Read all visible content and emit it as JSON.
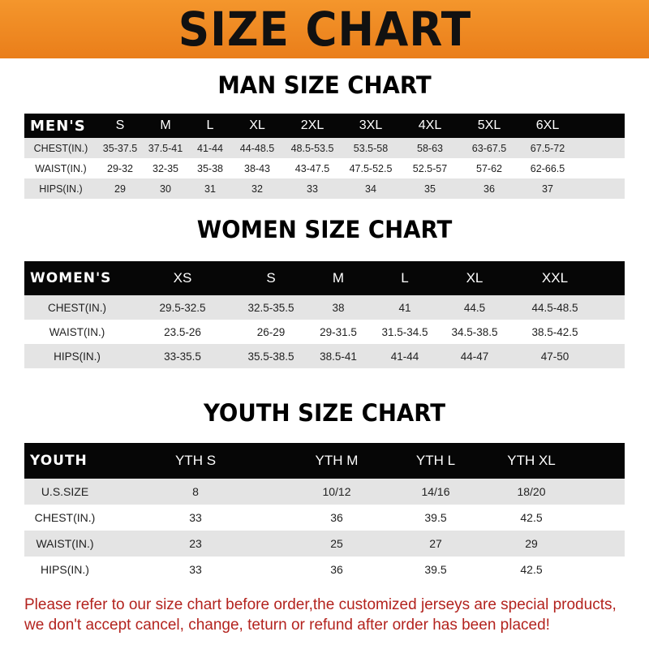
{
  "banner_title": "SIZE CHART",
  "men": {
    "title": "MAN SIZE CHART",
    "header": [
      "MEN'S",
      "S",
      "M",
      "L",
      "XL",
      "2XL",
      "3XL",
      "4XL",
      "5XL",
      "6XL"
    ],
    "rows": [
      [
        "CHEST(IN.)",
        "35-37.5",
        "37.5-41",
        "41-44",
        "44-48.5",
        "48.5-53.5",
        "53.5-58",
        "58-63",
        "63-67.5",
        "67.5-72"
      ],
      [
        "WAIST(IN.)",
        "29-32",
        "32-35",
        "35-38",
        "38-43",
        "43-47.5",
        "47.5-52.5",
        "52.5-57",
        "57-62",
        "62-66.5"
      ],
      [
        "HIPS(IN.)",
        "29",
        "30",
        "31",
        "32",
        "33",
        "34",
        "35",
        "36",
        "37"
      ]
    ]
  },
  "women": {
    "title": "WOMEN SIZE CHART",
    "header": [
      "WOMEN'S",
      "XS",
      "S",
      "M",
      "L",
      "XL",
      "XXL"
    ],
    "rows": [
      [
        "CHEST(IN.)",
        "29.5-32.5",
        "32.5-35.5",
        "38",
        "41",
        "44.5",
        "44.5-48.5"
      ],
      [
        "WAIST(IN.)",
        "23.5-26",
        "26-29",
        "29-31.5",
        "31.5-34.5",
        "34.5-38.5",
        "38.5-42.5"
      ],
      [
        "HIPS(IN.)",
        "33-35.5",
        "35.5-38.5",
        "38.5-41",
        "41-44",
        "44-47",
        "47-50"
      ]
    ]
  },
  "youth": {
    "title": "YOUTH SIZE CHART",
    "header": [
      "YOUTH",
      "YTH S",
      "YTH M",
      "YTH L",
      "YTH XL"
    ],
    "rows": [
      [
        "U.S.SIZE",
        "8",
        "10/12",
        "14/16",
        "18/20"
      ],
      [
        "CHEST(IN.)",
        "33",
        "36",
        "39.5",
        "42.5"
      ],
      [
        "WAIST(IN.)",
        "23",
        "25",
        "27",
        "29"
      ],
      [
        "HIPS(IN.)",
        "33",
        "36",
        "39.5",
        "42.5"
      ]
    ]
  },
  "notice": {
    "line1": "Please refer to our size chart before order,the customized jerseys are special products,",
    "line2": "we don't accept cancel, change, teturn or refund after order has been placed!"
  },
  "colors": {
    "banner": "#ef8a22",
    "header_row": "#060606",
    "stripe": "#e4e4e4",
    "notice": "#b3231e"
  }
}
